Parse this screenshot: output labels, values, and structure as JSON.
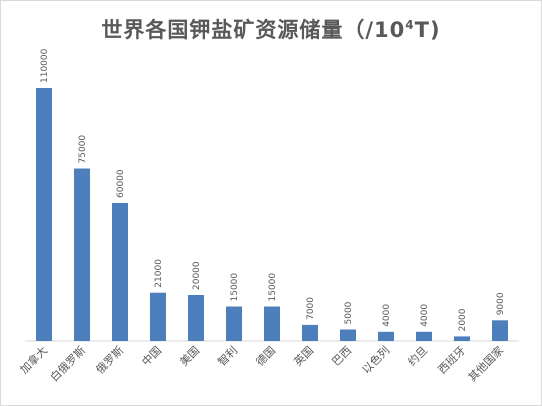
{
  "chart_data": {
    "type": "bar",
    "title_main": "世界各国钾盐矿资源储量（/10",
    "title_sup": "4",
    "title_end": "T)",
    "categories": [
      "加拿大",
      "白俄罗斯",
      "俄罗斯",
      "中国",
      "美国",
      "智利",
      "德国",
      "英国",
      "巴西",
      "以色列",
      "约旦",
      "西班牙",
      "其他国家"
    ],
    "values": [
      110000,
      75000,
      60000,
      21000,
      20000,
      15000,
      15000,
      7000,
      5000,
      4000,
      4000,
      2000,
      9000
    ],
    "data_labels": [
      "110000",
      "75000",
      "60000",
      "21000",
      "20000",
      "15000",
      "15000",
      "7000",
      "5000",
      "4000",
      "4000",
      "2000",
      "9000"
    ],
    "bar_color": "#4e7fbd",
    "axis_color": "#d9d9d9",
    "ylim": [
      0,
      110000
    ],
    "grid": false,
    "legend": "none"
  }
}
